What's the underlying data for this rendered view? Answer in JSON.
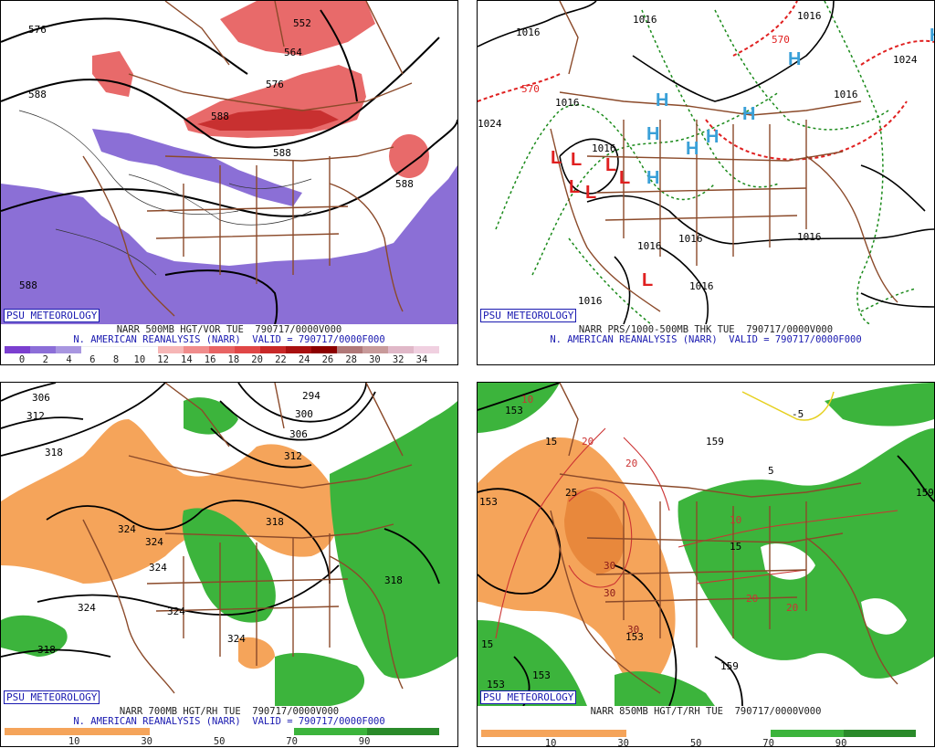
{
  "branding": "PSU METEOROLOGY",
  "panels": [
    {
      "caption_line1": "NARR 500MB HGT/VOR TUE  790717/0000V000",
      "caption_line2": "N. AMERICAN REANALYSIS (NARR)  VALID = 790717/0000F000",
      "colorbar_colors": [
        "#7b3fd0",
        "#8c6ed8",
        "#a896e0",
        "#ffffff",
        "#ffffff",
        "#ffffff",
        "#f6b6b6",
        "#f08c8c",
        "#e86464",
        "#e04646",
        "#c82828",
        "#a81010",
        "#8c0000",
        "#b07878",
        "#c89a9a",
        "#e0b8c8",
        "#f0d0e0"
      ],
      "colorbar_ticks": [
        "0",
        "2",
        "4",
        "6",
        "8",
        "10",
        "12",
        "14",
        "16",
        "18",
        "20",
        "22",
        "24",
        "26",
        "28",
        "30",
        "32",
        "34"
      ],
      "contour_labels": [
        "576",
        "552",
        "564",
        "576",
        "588",
        "588",
        "588",
        "588",
        "588"
      ]
    },
    {
      "caption_line1": "NARR PRS/1000-500MB THK TUE  790717/0000V000",
      "caption_line2": "N. AMERICAN REANALYSIS (NARR)  VALID = 790717/0000F000",
      "contour_labels": [
        "1016",
        "1016",
        "1016",
        "1016",
        "1016",
        "1016",
        "1016",
        "1016",
        "1016",
        "1016",
        "1016",
        "1024",
        "1024",
        "570",
        "570"
      ],
      "high_marker": "H",
      "low_marker": "L"
    },
    {
      "caption_line1": "NARR 700MB HGT/RH TUE  790717/0000V000",
      "caption_line2": "N. AMERICAN REANALYSIS (NARR)  VALID = 790717/0000F000",
      "colorbar_ticks": [
        "10",
        "30",
        "50",
        "70",
        "90"
      ],
      "contour_labels": [
        "306",
        "312",
        "318",
        "324",
        "324",
        "324",
        "324",
        "324",
        "324",
        "318",
        "318",
        "294",
        "300",
        "306",
        "312",
        "318"
      ]
    },
    {
      "caption_line1": "NARR 850MB HGT/T/RH TUE  790717/0000V000",
      "colorbar_ticks": [
        "10",
        "30",
        "50",
        "70",
        "90"
      ],
      "contour_labels": [
        "153",
        "153",
        "153",
        "153",
        "159",
        "159",
        "159",
        "153"
      ],
      "temp_labels": [
        "10",
        "15",
        "25",
        "20",
        "20",
        "30",
        "30",
        "30",
        "10",
        "15",
        "20",
        "20",
        "5",
        "-5",
        "15"
      ]
    }
  ],
  "colors": {
    "vort_purple": "#8b6fd6",
    "vort_red": "#e86a6a",
    "rh_orange": "#f5a45a",
    "rh_green": "#3cb43c",
    "geo_brown": "#8b4a2a",
    "high_blue": "#3aa0d8",
    "low_red": "#e02020",
    "thick_red": "#e02020",
    "thick_green": "#1a8a1a"
  }
}
